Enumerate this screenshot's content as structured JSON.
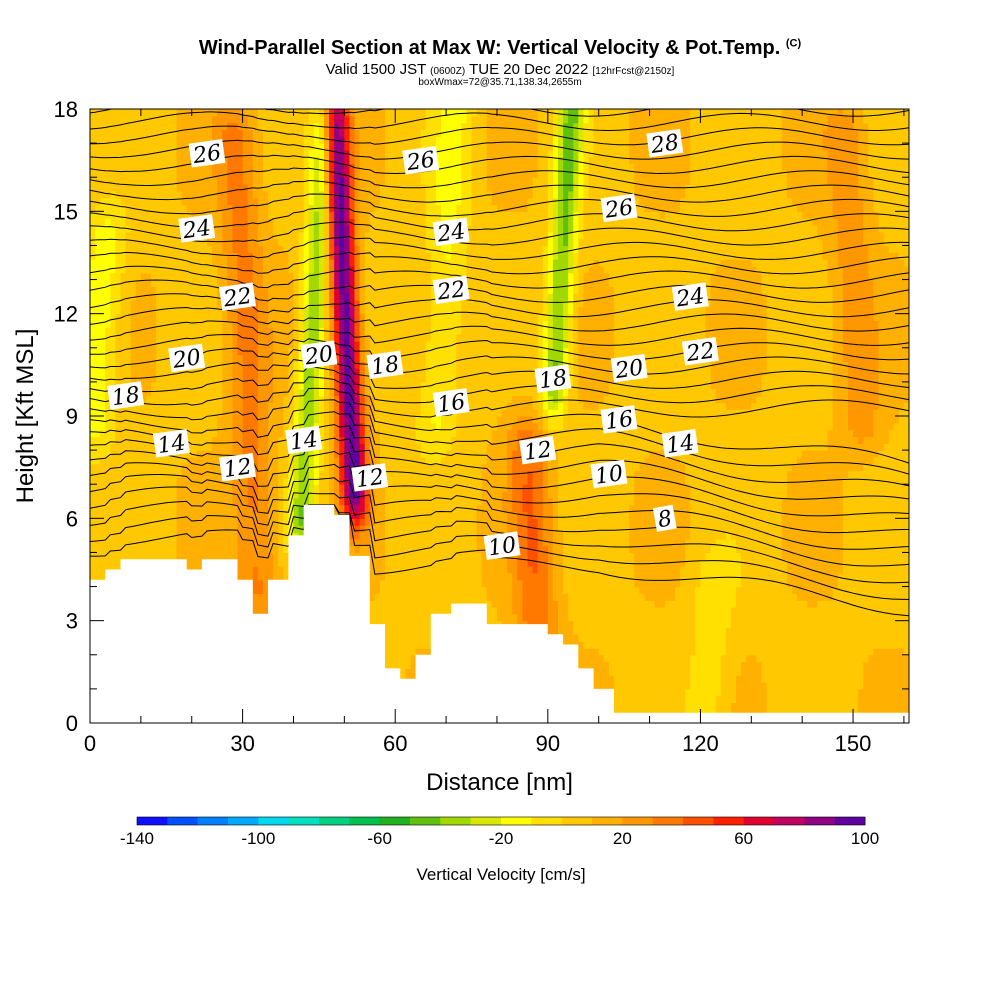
{
  "title": {
    "main": "Wind-Parallel Section at Max W: Vertical Velocity & Pot.Temp.",
    "copyright": "(C)",
    "valid_prefix": "Valid 1500 JST",
    "valid_utc": "(0600Z)",
    "valid_date": "TUE 20 Dec 2022",
    "forecast": "[12hrFcst@2150z]",
    "box_info": "boxWmax=72@35.71,138.34,2655m"
  },
  "chart_data": {
    "type": "heatmap",
    "xlabel": "Distance [nm]",
    "ylabel": "Height [Kft MSL]",
    "xlim": [
      0,
      161
    ],
    "ylim": [
      0,
      18
    ],
    "x_ticks": [
      0,
      30,
      60,
      90,
      120,
      150
    ],
    "y_ticks": [
      0,
      3,
      6,
      9,
      12,
      15,
      18
    ],
    "colorbar": {
      "label": "Vertical Velocity [cm/s]",
      "range": [
        -140,
        100
      ],
      "tick_values": [
        -140,
        -100,
        -60,
        -20,
        20,
        60,
        100
      ],
      "tick_labels": [
        "-140",
        "-100",
        "-60",
        "-20",
        "20",
        "60",
        "100"
      ],
      "colors": [
        "#1010ff",
        "#0050ff",
        "#0080ff",
        "#00a8ff",
        "#00d8f0",
        "#00e0c0",
        "#00d080",
        "#00c050",
        "#20b020",
        "#60c010",
        "#a0d800",
        "#d8e800",
        "#ffff00",
        "#ffe000",
        "#ffc800",
        "#ffb000",
        "#ff9800",
        "#ff7800",
        "#ff5000",
        "#ff2000",
        "#e00030",
        "#c00060",
        "#900080",
        "#6000a0"
      ]
    },
    "velocity_features": [
      {
        "x": 50,
        "height_range": [
          7,
          18
        ],
        "w_cm_s": 90,
        "sense": "updraft"
      },
      {
        "x": 44,
        "height_range": [
          6,
          18
        ],
        "w_cm_s": -45,
        "sense": "downdraft"
      },
      {
        "x": 70,
        "height_range": [
          9,
          18
        ],
        "w_cm_s": -20,
        "sense": "downdraft"
      },
      {
        "x": 93,
        "height_range": [
          10,
          18
        ],
        "w_cm_s": -50,
        "sense": "downdraft"
      },
      {
        "x": 2,
        "height_range": [
          9,
          14
        ],
        "w_cm_s": -25,
        "sense": "downdraft"
      },
      {
        "x": 31,
        "height_range": [
          4,
          17
        ],
        "w_cm_s": 25,
        "sense": "updraft"
      },
      {
        "x": 87,
        "height_range": [
          3,
          8
        ],
        "w_cm_s": 30,
        "sense": "updraft"
      },
      {
        "x": 122,
        "height_range": [
          0,
          4
        ],
        "w_cm_s": -15,
        "sense": "downdraft"
      },
      {
        "x": 150,
        "height_range": [
          9,
          17
        ],
        "w_cm_s": 18,
        "sense": "updraft"
      }
    ],
    "contour_labels": [
      {
        "text": "26",
        "x": 23,
        "y": 16.7
      },
      {
        "text": "24",
        "x": 21,
        "y": 14.5
      },
      {
        "text": "22",
        "x": 29,
        "y": 12.5
      },
      {
        "text": "20",
        "x": 19,
        "y": 10.7
      },
      {
        "text": "18",
        "x": 7,
        "y": 9.6
      },
      {
        "text": "14",
        "x": 16,
        "y": 8.2
      },
      {
        "text": "12",
        "x": 29,
        "y": 7.5
      },
      {
        "text": "14",
        "x": 42,
        "y": 8.3
      },
      {
        "text": "20",
        "x": 45,
        "y": 10.8
      },
      {
        "text": "12",
        "x": 55,
        "y": 7.2
      },
      {
        "text": "18",
        "x": 58,
        "y": 10.5
      },
      {
        "text": "26",
        "x": 65,
        "y": 16.5
      },
      {
        "text": "24",
        "x": 71,
        "y": 14.4
      },
      {
        "text": "22",
        "x": 71,
        "y": 12.7
      },
      {
        "text": "16",
        "x": 71,
        "y": 9.4
      },
      {
        "text": "10",
        "x": 81,
        "y": 5.2
      },
      {
        "text": "12",
        "x": 88,
        "y": 8.0
      },
      {
        "text": "18",
        "x": 91,
        "y": 10.1
      },
      {
        "text": "20",
        "x": 106,
        "y": 10.4
      },
      {
        "text": "16",
        "x": 104,
        "y": 8.9
      },
      {
        "text": "10",
        "x": 102,
        "y": 7.3
      },
      {
        "text": "26",
        "x": 104,
        "y": 15.1
      },
      {
        "text": "28",
        "x": 113,
        "y": 17.0
      },
      {
        "text": "24",
        "x": 118,
        "y": 12.5
      },
      {
        "text": "22",
        "x": 120,
        "y": 10.9
      },
      {
        "text": "14",
        "x": 116,
        "y": 8.2
      },
      {
        "text": "8",
        "x": 113,
        "y": 6.0
      }
    ],
    "terrain": [
      [
        0,
        4.2
      ],
      [
        3,
        4.2
      ],
      [
        3,
        4.5
      ],
      [
        6,
        4.5
      ],
      [
        6,
        4.8
      ],
      [
        19,
        4.8
      ],
      [
        19,
        4.5
      ],
      [
        22,
        4.5
      ],
      [
        22,
        4.8
      ],
      [
        29,
        4.8
      ],
      [
        29,
        4.2
      ],
      [
        32,
        4.2
      ],
      [
        32,
        3.2
      ],
      [
        35,
        3.2
      ],
      [
        35,
        4.2
      ],
      [
        39,
        4.2
      ],
      [
        39,
        5.5
      ],
      [
        42,
        5.5
      ],
      [
        42,
        6.4
      ],
      [
        48,
        6.4
      ],
      [
        48,
        6.1
      ],
      [
        51,
        6.1
      ],
      [
        51,
        4.9
      ],
      [
        55,
        4.9
      ],
      [
        55,
        2.9
      ],
      [
        58,
        2.9
      ],
      [
        58,
        1.6
      ],
      [
        61,
        1.6
      ],
      [
        61,
        1.3
      ],
      [
        64,
        1.3
      ],
      [
        64,
        2.0
      ],
      [
        67,
        2.0
      ],
      [
        67,
        3.2
      ],
      [
        71,
        3.2
      ],
      [
        71,
        3.5
      ],
      [
        78,
        3.5
      ],
      [
        78,
        2.9
      ],
      [
        86,
        2.9
      ],
      [
        86,
        2.9
      ],
      [
        90,
        2.9
      ],
      [
        90,
        2.6
      ],
      [
        93,
        2.6
      ],
      [
        93,
        2.3
      ],
      [
        96,
        2.3
      ],
      [
        96,
        1.6
      ],
      [
        99,
        1.6
      ],
      [
        99,
        1.0
      ],
      [
        103,
        1.0
      ],
      [
        103,
        0.3
      ],
      [
        130,
        0.3
      ],
      [
        130,
        0.3
      ],
      [
        161,
        0.3
      ]
    ]
  }
}
